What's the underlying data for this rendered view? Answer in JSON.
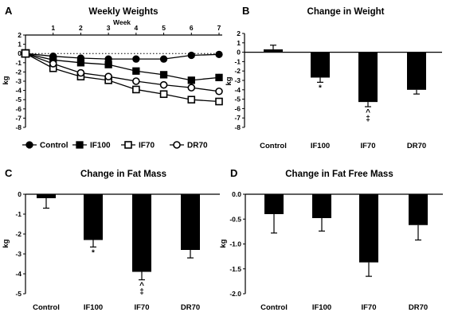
{
  "chart_data": [
    {
      "panel": "A",
      "type": "line",
      "title": "Weekly Weights",
      "xlabel": "Week",
      "ylabel": "kg",
      "x": [
        0,
        1,
        2,
        3,
        4,
        5,
        6,
        7
      ],
      "xticks": [
        "1",
        "2",
        "3",
        "4",
        "5",
        "6",
        "7"
      ],
      "ylim": [
        -8,
        2
      ],
      "yticks": [
        2,
        1,
        0,
        -1,
        -2,
        -3,
        -4,
        -5,
        -6,
        -7,
        -8
      ],
      "series": [
        {
          "name": "Control",
          "marker": "filled-circle",
          "values": [
            0,
            -0.3,
            -0.5,
            -0.6,
            -0.6,
            -0.6,
            -0.2,
            -0.1
          ],
          "errors": [
            0,
            0.1,
            0.15,
            0.15,
            0.2,
            0.2,
            0.2,
            0.25
          ]
        },
        {
          "name": "IF100",
          "marker": "filled-square",
          "values": [
            0,
            -0.7,
            -1.0,
            -1.2,
            -1.9,
            -2.3,
            -2.9,
            -2.6
          ],
          "errors": [
            0,
            0.1,
            0.15,
            0.2,
            0.25,
            0.3,
            0.35,
            0.4
          ]
        },
        {
          "name": "IF70",
          "marker": "open-square",
          "values": [
            0,
            -1.6,
            -2.5,
            -2.9,
            -3.9,
            -4.4,
            -5.0,
            -5.2
          ],
          "errors": [
            0,
            0.15,
            0.2,
            0.25,
            0.3,
            0.3,
            0.35,
            0.35
          ]
        },
        {
          "name": "DR70",
          "marker": "open-circle",
          "values": [
            0,
            -1.1,
            -2.1,
            -2.5,
            -3.0,
            -3.4,
            -3.7,
            -4.1
          ],
          "errors": [
            0,
            0.15,
            0.2,
            0.2,
            0.25,
            0.3,
            0.3,
            0.3
          ]
        }
      ],
      "legend": "bottom"
    },
    {
      "panel": "B",
      "type": "bar",
      "title": "Change in Weight",
      "ylabel": "kg",
      "categories": [
        "Control",
        "IF100",
        "IF70",
        "DR70"
      ],
      "values": [
        0.3,
        -2.7,
        -5.3,
        -4.0
      ],
      "errors": [
        0.45,
        0.5,
        0.5,
        0.45
      ],
      "annotations": [
        "",
        "*",
        "^ ‡",
        ""
      ],
      "ylim": [
        -8,
        2
      ],
      "yticks": [
        2,
        1,
        0,
        -1,
        -2,
        -3,
        -4,
        -5,
        -6,
        -7,
        -8
      ]
    },
    {
      "panel": "C",
      "type": "bar",
      "title": "Change in Fat Mass",
      "ylabel": "kg",
      "categories": [
        "Control",
        "IF100",
        "IF70",
        "DR70"
      ],
      "values": [
        -0.2,
        -2.3,
        -3.9,
        -2.8
      ],
      "errors": [
        0.5,
        0.35,
        0.4,
        0.4
      ],
      "annotations": [
        "",
        "*",
        "^ ‡",
        ""
      ],
      "ylim": [
        -5,
        0
      ],
      "yticks": [
        0,
        -1,
        -2,
        -3,
        -4,
        -5
      ]
    },
    {
      "panel": "D",
      "type": "bar",
      "title": "Change in Fat Free Mass",
      "ylabel": "kg",
      "categories": [
        "Control",
        "IF100",
        "IF70",
        "DR70"
      ],
      "values": [
        -0.4,
        -0.48,
        -1.37,
        -0.62
      ],
      "errors": [
        0.38,
        0.26,
        0.28,
        0.3
      ],
      "annotations": [
        "",
        "",
        "",
        ""
      ],
      "ylim": [
        -2,
        0
      ],
      "yticks": [
        "0.0",
        "-0.5",
        "-1.0",
        "-1.5",
        "-2.0"
      ]
    }
  ],
  "colors": {
    "bar": "#000000",
    "axis": "#000000",
    "background": "#ffffff"
  }
}
